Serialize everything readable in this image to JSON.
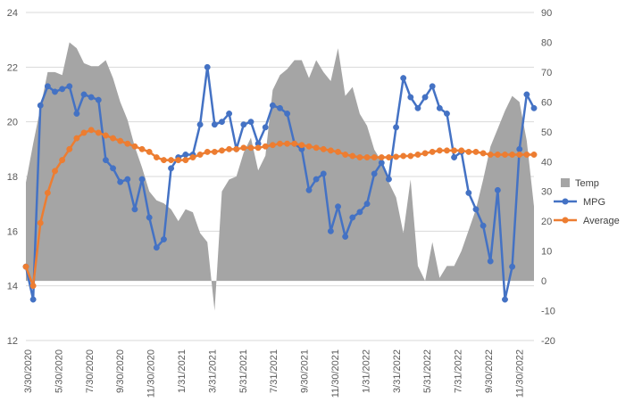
{
  "chart_data": {
    "type": "line",
    "title": "",
    "xlabel": "",
    "ylabel": "",
    "x_tick_labels": [
      "3/30/2020",
      "5/30/2020",
      "7/30/2020",
      "9/30/2020",
      "11/30/2020",
      "1/31/2021",
      "3/31/2021",
      "5/31/2021",
      "7/31/2021",
      "9/30/2021",
      "11/30/2021",
      "1/31/2022",
      "3/31/2022",
      "5/31/2022",
      "7/31/2022",
      "9/30/2022",
      "11/30/2022"
    ],
    "x_period_count": 71,
    "y_left": {
      "min": 12,
      "max": 24,
      "step": 2,
      "ticks": [
        "12",
        "14",
        "16",
        "18",
        "20",
        "22",
        "24"
      ]
    },
    "y_right": {
      "min": -20,
      "max": 90,
      "step": 10,
      "ticks": [
        "-20",
        "-10",
        "0",
        "10",
        "20",
        "30",
        "40",
        "50",
        "60",
        "70",
        "80",
        "90"
      ]
    },
    "grid": true,
    "legend_position": "right",
    "series": [
      {
        "name": "Temp",
        "kind": "area",
        "axis": "right",
        "color": "#a5a5a5",
        "values": [
          33,
          46,
          58,
          70,
          70,
          69,
          80,
          78,
          73,
          72,
          72,
          74,
          68,
          60,
          54,
          45,
          38,
          30,
          27,
          26,
          24,
          20,
          24,
          23,
          16,
          13,
          -10,
          30,
          34,
          35,
          43,
          48,
          37,
          42,
          64,
          69,
          71,
          74,
          74,
          68,
          74,
          70,
          67,
          78,
          62,
          65,
          56,
          52,
          44,
          40,
          33,
          28,
          16,
          34,
          5,
          0,
          13,
          1,
          5,
          5,
          10,
          17,
          24,
          34,
          45,
          51,
          57,
          62,
          60,
          47,
          25
        ]
      },
      {
        "name": "MPG",
        "kind": "line",
        "axis": "left",
        "color": "#4472c4",
        "values": [
          14.7,
          13.5,
          20.6,
          21.3,
          21.1,
          21.2,
          21.3,
          20.3,
          21.0,
          20.9,
          20.8,
          18.6,
          18.3,
          17.8,
          17.9,
          16.8,
          17.9,
          16.5,
          15.4,
          15.7,
          18.3,
          18.7,
          18.8,
          18.8,
          19.9,
          22.0,
          19.9,
          20.0,
          20.3,
          19.0,
          19.9,
          20.0,
          19.2,
          19.8,
          20.6,
          20.5,
          20.3,
          19.2,
          19.0,
          17.5,
          17.9,
          18.1,
          16.0,
          16.9,
          15.8,
          16.5,
          16.7,
          17.0,
          18.1,
          18.5,
          17.9,
          19.8,
          21.6,
          20.9,
          20.5,
          20.9,
          21.3,
          20.5,
          20.3,
          18.7,
          18.9,
          17.4,
          16.8,
          16.2,
          14.9,
          17.5,
          13.5,
          14.7,
          19.0,
          21.0,
          20.5
        ]
      },
      {
        "name": "Average",
        "kind": "line",
        "axis": "left",
        "color": "#ed7d31",
        "values": [
          14.7,
          14.0,
          16.3,
          17.4,
          18.2,
          18.6,
          19.0,
          19.4,
          19.6,
          19.7,
          19.6,
          19.5,
          19.4,
          19.3,
          19.2,
          19.1,
          19.0,
          18.9,
          18.7,
          18.6,
          18.6,
          18.6,
          18.6,
          18.7,
          18.8,
          18.9,
          18.9,
          18.95,
          19.0,
          19.0,
          19.05,
          19.05,
          19.05,
          19.1,
          19.15,
          19.2,
          19.2,
          19.2,
          19.15,
          19.1,
          19.05,
          19.0,
          18.95,
          18.9,
          18.8,
          18.75,
          18.7,
          18.7,
          18.7,
          18.7,
          18.7,
          18.72,
          18.75,
          18.75,
          18.8,
          18.85,
          18.9,
          18.95,
          18.95,
          18.95,
          18.95,
          18.9,
          18.9,
          18.85,
          18.8,
          18.8,
          18.8,
          18.8,
          18.8,
          18.8,
          18.8
        ]
      }
    ]
  }
}
